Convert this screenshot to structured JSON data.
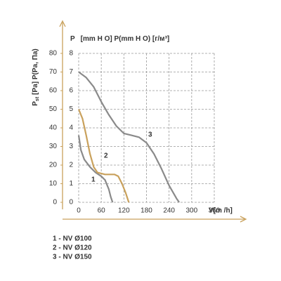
{
  "chart_data": {
    "type": "line",
    "y_label": "P",
    "y_label_rest": "[mm H O] P(mm H O) [г/м³]",
    "y2_label": "P",
    "y2_label_sub": "st",
    "y2_label_rest": "[Pa] P(Pa, Па)",
    "x_label": "V[m /h]",
    "xlim": [
      0,
      360
    ],
    "xticks": [
      0,
      60,
      120,
      180,
      240,
      300,
      360
    ],
    "ylim": [
      0,
      8
    ],
    "yticks": [
      0,
      1,
      2,
      3,
      4,
      5,
      6,
      7,
      8
    ],
    "y2lim": [
      0,
      80
    ],
    "y2ticks": [
      0,
      10,
      20,
      30,
      40,
      50,
      60,
      70,
      80
    ],
    "grid": true,
    "axis_color": "#c9a15c",
    "series": [
      {
        "name": "1 - NV Ø100",
        "label": "1",
        "color": "#8a8a8a",
        "x": [
          0,
          6,
          15,
          30,
          45,
          60,
          70,
          80,
          85,
          90
        ],
        "values": [
          3.6,
          2.8,
          2.3,
          1.9,
          1.6,
          1.4,
          1.2,
          0.7,
          0.3,
          0
        ]
      },
      {
        "name": "2 - NV Ø120",
        "label": "2",
        "color": "#c9a15c",
        "x": [
          0,
          10,
          20,
          30,
          40,
          50,
          70,
          95,
          105,
          115,
          125,
          133
        ],
        "values": [
          5.0,
          4.5,
          3.6,
          2.6,
          1.9,
          1.6,
          1.5,
          1.5,
          1.4,
          1.0,
          0.5,
          0
        ]
      },
      {
        "name": "3 - NV Ø150",
        "label": "3",
        "color": "#8a8a8a",
        "x": [
          0,
          20,
          40,
          60,
          80,
          100,
          120,
          140,
          160,
          180,
          200,
          220,
          240,
          260,
          267
        ],
        "values": [
          7.0,
          6.7,
          6.2,
          5.4,
          4.7,
          4.1,
          3.7,
          3.6,
          3.5,
          3.2,
          2.6,
          1.8,
          0.9,
          0.2,
          0
        ]
      }
    ]
  }
}
